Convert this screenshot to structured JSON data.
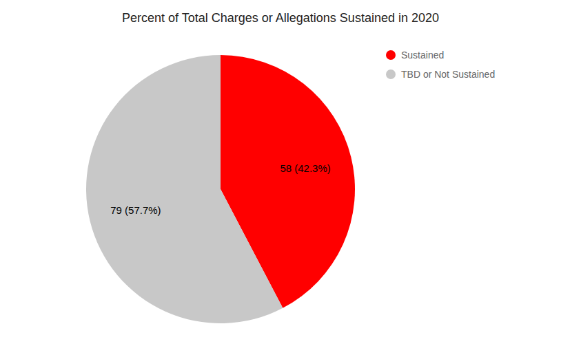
{
  "chart_data": {
    "type": "pie",
    "title": "Percent of Total Charges or Allegations Sustained in 2020",
    "categories": [
      "Sustained",
      "TBD or Not Sustained"
    ],
    "values": [
      58,
      79
    ],
    "value_labels": [
      "58 (42.3%)",
      "79 (57.7%)"
    ],
    "colors": [
      "#ff0000",
      "#c8c8c8"
    ],
    "legend": "upper right",
    "data_labels": true
  }
}
